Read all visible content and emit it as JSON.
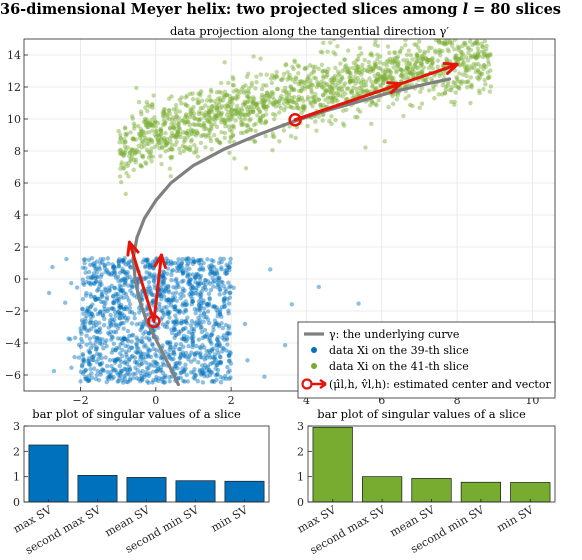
{
  "suptitle": "36-dimensional Meyer helix: two projected slices among l = 80 slices",
  "colors": {
    "blue": "#0072BD",
    "green": "#77AC30",
    "curve": "#808080",
    "arrow": "#E4160A",
    "grid": "#e6e6e6",
    "axis": "#262626"
  },
  "chart_data": [
    {
      "id": "main",
      "type": "scatter",
      "title": "data projection along the tangential direction γ′",
      "xlim": [
        -3.5,
        10.6
      ],
      "ylim": [
        -7,
        15
      ],
      "xticks": [
        -2,
        0,
        2,
        4,
        6,
        8,
        10
      ],
      "yticks": [
        -6,
        -4,
        -2,
        0,
        2,
        4,
        6,
        8,
        10,
        12,
        14
      ],
      "grid": true,
      "legend_position": "bottom-right",
      "legend": [
        "γ: the underlying curve",
        "data Xi on the 39-th slice",
        "data Xi on the 41-th slice",
        "(μ̂l,h, v̂l,h): estimated center and vector"
      ],
      "curve": {
        "x": [
          0.6,
          0.35,
          0.05,
          -0.25,
          -0.45,
          -0.55,
          -0.6,
          -0.5,
          -0.3,
          0.0,
          0.4,
          1.0,
          1.8,
          2.7,
          3.6,
          4.5,
          5.4,
          6.3,
          7.2,
          7.8
        ],
        "y": [
          -6.6,
          -5.4,
          -4.0,
          -2.6,
          -1.2,
          0.0,
          1.3,
          2.6,
          3.8,
          4.9,
          6.0,
          7.1,
          8.1,
          9.0,
          9.8,
          10.5,
          11.1,
          11.7,
          12.2,
          12.5
        ]
      },
      "slices": [
        {
          "name": "data Xi on the 39-th slice",
          "distribution": {
            "x_center": 0.0,
            "x_range": [
              -2.0,
              2.0
            ],
            "y_center": -2.7,
            "y_range": [
              -6.5,
              1.3
            ],
            "count": 1400
          },
          "center": [
            -0.05,
            -2.65
          ],
          "vector_tip": [
            -0.7,
            2.3
          ],
          "vector_alt_tip": [
            0.15,
            1.5
          ]
        },
        {
          "name": "data Xi on the 41-th slice",
          "distribution": {
            "x_center": 3.7,
            "x_range": [
              -1.0,
              8.9
            ],
            "y_center": 9.9,
            "y_spread": 1.25,
            "count": 1600
          },
          "center": [
            3.7,
            9.95
          ],
          "vector_tip": [
            8.0,
            13.4
          ],
          "vector_alt_tip": [
            6.5,
            12.2
          ]
        }
      ]
    },
    {
      "id": "bar-left",
      "type": "bar",
      "title": "bar plot of singular values of a slice",
      "categories": [
        "max SV",
        "second max SV",
        "mean SV",
        "second min SV",
        "min SV"
      ],
      "values": [
        2.25,
        1.05,
        0.97,
        0.84,
        0.82
      ],
      "ylim": [
        0,
        3
      ],
      "yticks": [
        0,
        1,
        2,
        3
      ],
      "color": "#0072BD"
    },
    {
      "id": "bar-right",
      "type": "bar",
      "title": "bar plot of singular values of a slice",
      "categories": [
        "max SV",
        "second max SV",
        "mean SV",
        "second min SV",
        "min SV"
      ],
      "values": [
        2.95,
        1.0,
        0.93,
        0.78,
        0.77
      ],
      "ylim": [
        0,
        3
      ],
      "yticks": [
        0,
        1,
        2,
        3
      ],
      "color": "#77AC30"
    }
  ]
}
